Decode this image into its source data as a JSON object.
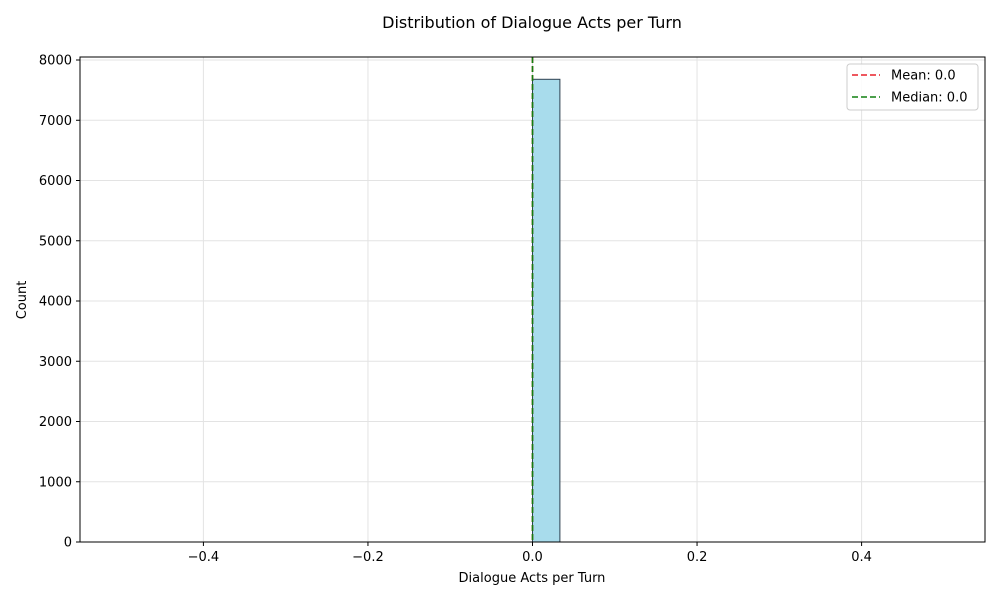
{
  "chart_data": {
    "type": "bar",
    "title": "Distribution of Dialogue Acts per Turn",
    "xlabel": "Dialogue Acts per Turn",
    "ylabel": "Count",
    "xlim": [
      -0.55,
      0.55
    ],
    "ylim": [
      0,
      8050
    ],
    "xticks": [
      -0.4,
      -0.2,
      0.0,
      0.2,
      0.4
    ],
    "xtick_labels": [
      "−0.4",
      "−0.2",
      "0.0",
      "0.2",
      "0.4"
    ],
    "yticks": [
      0,
      1000,
      2000,
      3000,
      4000,
      5000,
      6000,
      7000,
      8000
    ],
    "ytick_labels": [
      "0",
      "1000",
      "2000",
      "3000",
      "4000",
      "5000",
      "6000",
      "7000",
      "8000"
    ],
    "grid": true,
    "bins": [
      {
        "start": 0.0,
        "end": 0.0333,
        "count": 7680
      }
    ],
    "hist_range": [
      -0.5,
      0.5
    ],
    "bar_color": "#a8dcec",
    "bar_edge_color": "#2f4050",
    "reference_lines": [
      {
        "name": "mean",
        "label": "Mean: 0.0",
        "x": 0.0,
        "color": "#e8202a",
        "style": "dashed"
      },
      {
        "name": "median",
        "label": "Median: 0.0",
        "x": 0.0,
        "color": "#108010",
        "style": "dashed"
      }
    ],
    "legend_position": "top-right"
  }
}
